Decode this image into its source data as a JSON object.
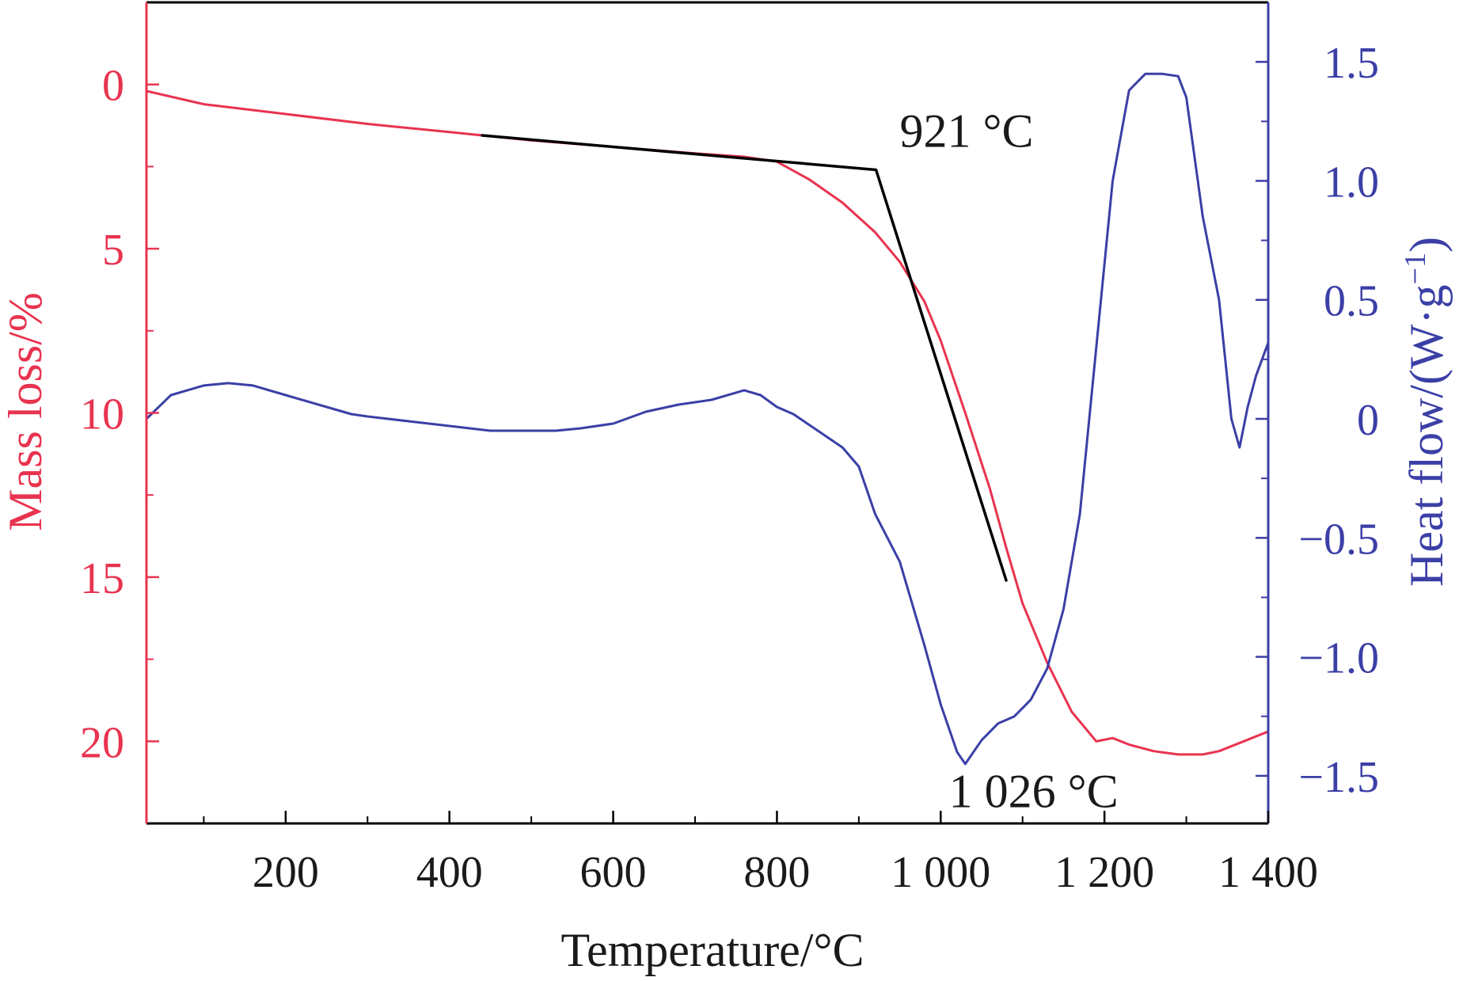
{
  "chart_data": {
    "type": "line",
    "xlabel": "Temperature/°C",
    "xlim": [
      30,
      1400
    ],
    "x_ticks": [
      200,
      400,
      600,
      800,
      1000,
      1200,
      1400
    ],
    "x_tick_labels": [
      "200",
      "400",
      "600",
      "800",
      "1 000",
      "1 200",
      "1 400"
    ],
    "x_minor_ticks": [
      100,
      300,
      500,
      700,
      900,
      1100,
      1300
    ],
    "y_left": {
      "label": "Mass loss/%",
      "lim": [
        22.5,
        -2.5
      ],
      "inverted": true,
      "ticks": [
        0,
        5,
        10,
        15,
        20
      ],
      "tick_labels": [
        "0",
        "5",
        "10",
        "15",
        "20"
      ],
      "minor_ticks": [
        2.5,
        7.5,
        12.5,
        17.5
      ],
      "color": "#e8334f"
    },
    "y_right": {
      "label_main": "Heat flow/(W·g",
      "label_sup": "−1",
      "label_end": ")",
      "lim": [
        -1.7,
        1.75
      ],
      "ticks": [
        -1.5,
        -1.0,
        -0.5,
        0,
        0.5,
        1.0,
        1.5
      ],
      "tick_labels": [
        "−1.5",
        "−1.0",
        "−0.5",
        "0",
        "0.5",
        "1.0",
        "1.5"
      ],
      "minor_ticks": [
        -1.25,
        -0.75,
        -0.25,
        0.25,
        0.75,
        1.25
      ],
      "color": "#3b3fa6"
    },
    "series": [
      {
        "axis": "left",
        "color": "#e8334f",
        "x": [
          30,
          100,
          200,
          300,
          400,
          440,
          500,
          600,
          700,
          760,
          800,
          840,
          880,
          920,
          950,
          980,
          1000,
          1030,
          1060,
          1080,
          1100,
          1130,
          1160,
          1190,
          1210,
          1230,
          1260,
          1290,
          1320,
          1340,
          1370,
          1400
        ],
        "y": [
          0.2,
          0.6,
          0.9,
          1.2,
          1.45,
          1.55,
          1.7,
          1.9,
          2.1,
          2.2,
          2.35,
          2.9,
          3.6,
          4.5,
          5.4,
          6.6,
          7.8,
          10.0,
          12.3,
          14.1,
          15.8,
          17.6,
          19.1,
          20.0,
          19.9,
          20.1,
          20.3,
          20.4,
          20.4,
          20.3,
          20.0,
          19.7
        ]
      },
      {
        "axis": "right",
        "color": "#3b3fa6",
        "x": [
          30,
          60,
          100,
          130,
          160,
          200,
          250,
          280,
          300,
          350,
          400,
          450,
          500,
          530,
          560,
          600,
          640,
          680,
          720,
          760,
          780,
          800,
          820,
          850,
          880,
          900,
          920,
          950,
          980,
          1000,
          1020,
          1030,
          1050,
          1070,
          1090,
          1110,
          1130,
          1150,
          1170,
          1190,
          1210,
          1230,
          1250,
          1270,
          1290,
          1300,
          1320,
          1340,
          1355,
          1365,
          1375,
          1385,
          1400
        ],
        "y": [
          0.0,
          0.1,
          0.14,
          0.15,
          0.14,
          0.1,
          0.05,
          0.02,
          0.01,
          -0.01,
          -0.03,
          -0.05,
          -0.05,
          -0.05,
          -0.04,
          -0.02,
          0.03,
          0.06,
          0.08,
          0.12,
          0.1,
          0.05,
          0.02,
          -0.05,
          -0.12,
          -0.2,
          -0.4,
          -0.6,
          -0.95,
          -1.2,
          -1.4,
          -1.45,
          -1.35,
          -1.28,
          -1.25,
          -1.18,
          -1.05,
          -0.8,
          -0.4,
          0.3,
          1.0,
          1.38,
          1.45,
          1.45,
          1.44,
          1.35,
          0.85,
          0.5,
          0.0,
          -0.12,
          0.05,
          0.18,
          0.32
        ]
      },
      {
        "axis": "left",
        "color": "#000000",
        "x": [
          440,
          921,
          1080
        ],
        "y": [
          1.55,
          2.6,
          15.1
        ]
      }
    ],
    "annotations": [
      {
        "text": "921 °C",
        "x": 950,
        "y": 1.9,
        "axis": "left"
      },
      {
        "text": "1 026 °C",
        "x": 1010,
        "y": 22.0,
        "axis": "left"
      }
    ]
  }
}
